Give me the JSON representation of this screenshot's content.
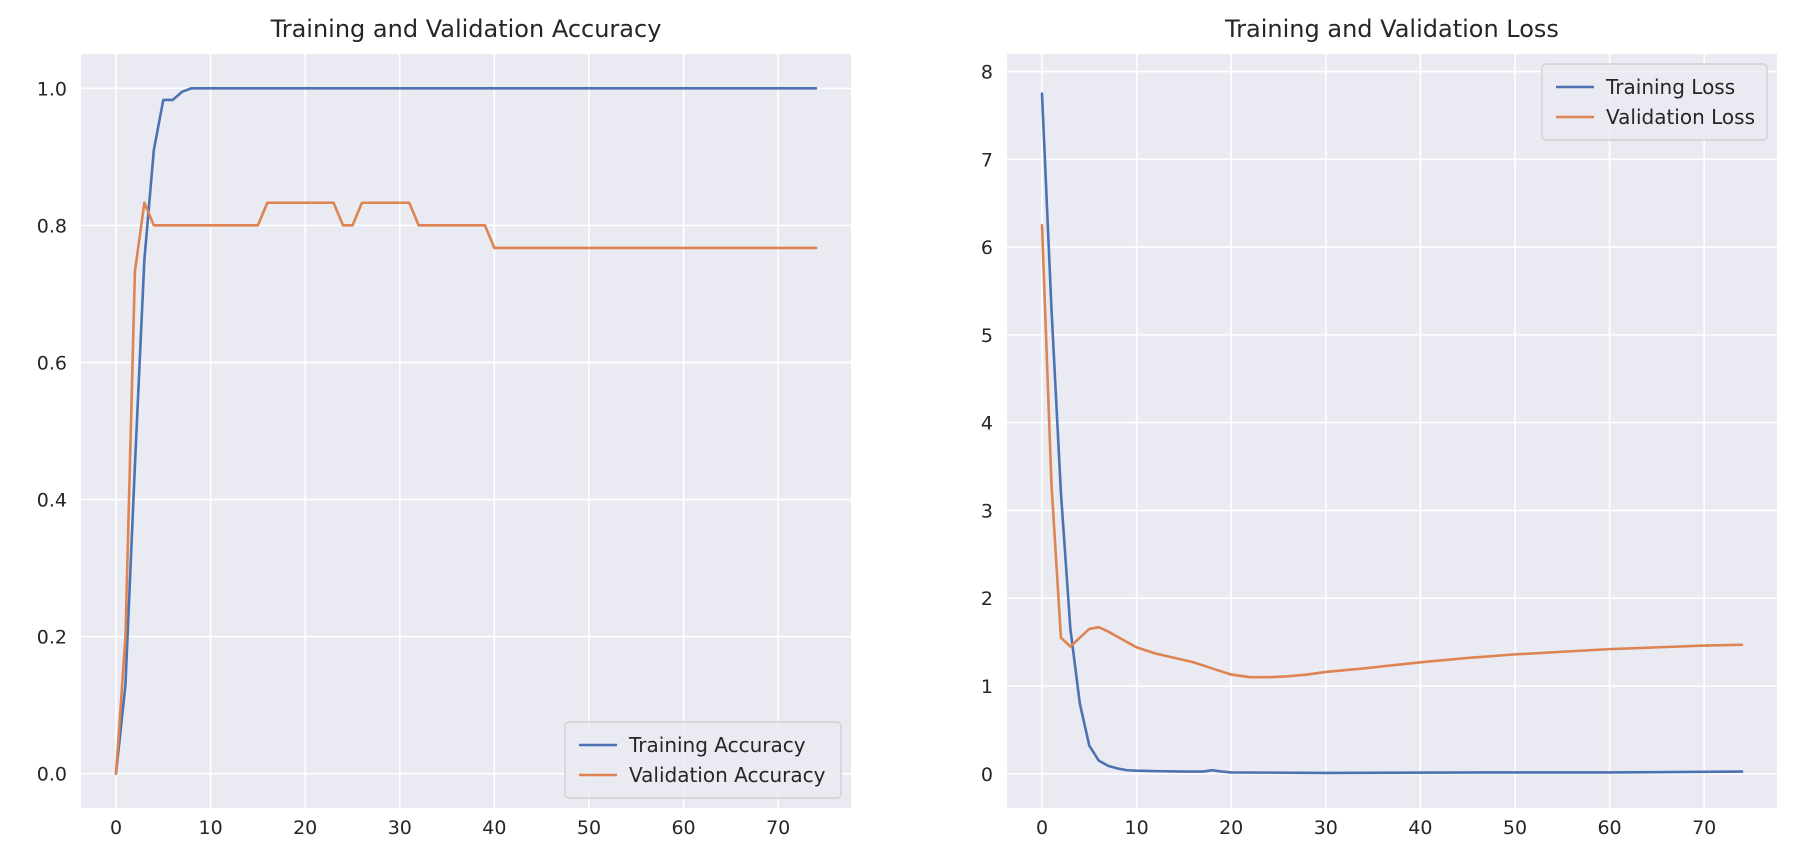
{
  "chart_data": [
    {
      "type": "line",
      "title": "Training and Validation Accuracy",
      "xlabel": "",
      "ylabel": "",
      "xlim": [
        -3.7,
        77.7
      ],
      "ylim": [
        -0.05,
        1.05
      ],
      "xticks": [
        0,
        10,
        20,
        30,
        40,
        50,
        60,
        70
      ],
      "yticks": [
        0.0,
        0.2,
        0.4,
        0.6,
        0.8,
        1.0
      ],
      "ytick_labels": [
        "0.0",
        "0.2",
        "0.4",
        "0.6",
        "0.8",
        "1.0"
      ],
      "grid": true,
      "legend_position": "lower-right",
      "series": [
        {
          "name": "Training Accuracy",
          "color": "#4c72b0",
          "points": [
            [
              0,
              0.0
            ],
            [
              1,
              0.13
            ],
            [
              2,
              0.45
            ],
            [
              3,
              0.75
            ],
            [
              4,
              0.91
            ],
            [
              5,
              0.983
            ],
            [
              6,
              0.983
            ],
            [
              7,
              0.995
            ],
            [
              8,
              1.0
            ],
            [
              74,
              1.0
            ]
          ]
        },
        {
          "name": "Validation Accuracy",
          "color": "#dd8452",
          "points": [
            [
              0,
              0.0
            ],
            [
              1,
              0.2
            ],
            [
              2,
              0.733
            ],
            [
              3,
              0.833
            ],
            [
              4,
              0.8
            ],
            [
              15,
              0.8
            ],
            [
              16,
              0.833
            ],
            [
              23,
              0.833
            ],
            [
              24,
              0.8
            ],
            [
              25,
              0.8
            ],
            [
              26,
              0.833
            ],
            [
              31,
              0.833
            ],
            [
              32,
              0.8
            ],
            [
              39,
              0.8
            ],
            [
              40,
              0.767
            ],
            [
              74,
              0.767
            ]
          ]
        }
      ]
    },
    {
      "type": "line",
      "title": "Training and Validation Loss",
      "xlabel": "",
      "ylabel": "",
      "xlim": [
        -3.7,
        77.7
      ],
      "ylim": [
        -0.39,
        8.2
      ],
      "xticks": [
        0,
        10,
        20,
        30,
        40,
        50,
        60,
        70
      ],
      "yticks": [
        0,
        1,
        2,
        3,
        4,
        5,
        6,
        7,
        8
      ],
      "ytick_labels": [
        "0",
        "1",
        "2",
        "3",
        "4",
        "5",
        "6",
        "7",
        "8"
      ],
      "grid": true,
      "legend_position": "upper-right",
      "series": [
        {
          "name": "Training Loss",
          "color": "#4c72b0",
          "points": [
            [
              0,
              7.75
            ],
            [
              1,
              5.3
            ],
            [
              2,
              3.2
            ],
            [
              3,
              1.65
            ],
            [
              4,
              0.8
            ],
            [
              5,
              0.32
            ],
            [
              6,
              0.15
            ],
            [
              7,
              0.09
            ],
            [
              8,
              0.06
            ],
            [
              9,
              0.04
            ],
            [
              10,
              0.035
            ],
            [
              12,
              0.03
            ],
            [
              15,
              0.025
            ],
            [
              17,
              0.025
            ],
            [
              18,
              0.04
            ],
            [
              19,
              0.025
            ],
            [
              20,
              0.015
            ],
            [
              30,
              0.01
            ],
            [
              47,
              0.015
            ],
            [
              60,
              0.015
            ],
            [
              74,
              0.025
            ]
          ]
        },
        {
          "name": "Validation Loss",
          "color": "#dd8452",
          "points": [
            [
              0,
              6.25
            ],
            [
              1,
              3.3
            ],
            [
              2,
              1.55
            ],
            [
              3,
              1.45
            ],
            [
              4,
              1.55
            ],
            [
              5,
              1.65
            ],
            [
              6,
              1.67
            ],
            [
              7,
              1.62
            ],
            [
              8,
              1.56
            ],
            [
              9,
              1.5
            ],
            [
              10,
              1.44
            ],
            [
              12,
              1.37
            ],
            [
              14,
              1.32
            ],
            [
              16,
              1.27
            ],
            [
              18,
              1.2
            ],
            [
              20,
              1.13
            ],
            [
              22,
              1.1
            ],
            [
              24,
              1.1
            ],
            [
              26,
              1.11
            ],
            [
              28,
              1.13
            ],
            [
              30,
              1.16
            ],
            [
              34,
              1.2
            ],
            [
              40,
              1.27
            ],
            [
              45,
              1.32
            ],
            [
              50,
              1.36
            ],
            [
              55,
              1.39
            ],
            [
              60,
              1.42
            ],
            [
              65,
              1.44
            ],
            [
              70,
              1.46
            ],
            [
              74,
              1.47
            ]
          ]
        }
      ]
    }
  ]
}
